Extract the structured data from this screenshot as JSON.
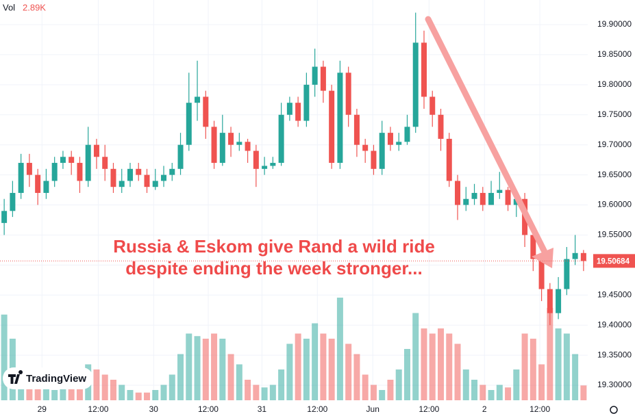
{
  "chart_data": {
    "type": "candlestick",
    "annotation": [
      "Russia & Eskom give Rand a wild ride",
      "despite ending the week stronger..."
    ],
    "volume_label": "Vol",
    "last_volume_label": "2.89K",
    "logo_text": "TradingView",
    "up_color": "#26a69a",
    "down_color": "#ef5350",
    "grid": true,
    "xlim": [
      0,
      70
    ],
    "xticks": [
      {
        "value": 5,
        "label": "29"
      },
      {
        "value": 11.7,
        "label": "12:00"
      },
      {
        "value": 18.3,
        "label": "30"
      },
      {
        "value": 24.8,
        "label": "12:00"
      },
      {
        "value": 31.2,
        "label": "31"
      },
      {
        "value": 37.8,
        "label": "12:00"
      },
      {
        "value": 44.4,
        "label": "Jun"
      },
      {
        "value": 51.1,
        "label": "12:00"
      },
      {
        "value": 57.7,
        "label": "2"
      },
      {
        "value": 64.3,
        "label": "12:00"
      }
    ],
    "ylim": [
      19.275,
      19.941
    ],
    "yticks": [
      {
        "value": 19.3,
        "label": "19.30000"
      },
      {
        "value": 19.35,
        "label": "19.35000"
      },
      {
        "value": 19.4,
        "label": "19.40000"
      },
      {
        "value": 19.45,
        "label": "19.45000"
      },
      {
        "value": 19.5,
        "label": "19.50000"
      },
      {
        "value": 19.55,
        "label": "19.55000"
      },
      {
        "value": 19.6,
        "label": "19.60000"
      },
      {
        "value": 19.65,
        "label": "19.65000"
      },
      {
        "value": 19.7,
        "label": "19.70000"
      },
      {
        "value": 19.75,
        "label": "19.75000"
      },
      {
        "value": 19.8,
        "label": "19.80000"
      },
      {
        "value": 19.85,
        "label": "19.85000"
      },
      {
        "value": 19.9,
        "label": "19.90000"
      }
    ],
    "volume_ylim": [
      0,
      24
    ],
    "open": [
      19.57,
      19.59,
      19.62,
      19.67,
      19.65,
      19.62,
      19.64,
      19.67,
      19.68,
      19.67,
      19.64,
      19.7,
      19.68,
      19.66,
      19.63,
      19.64,
      19.66,
      19.65,
      19.63,
      19.64,
      19.65,
      19.66,
      19.7,
      19.77,
      19.78,
      19.73,
      19.67,
      19.72,
      19.7,
      19.705,
      19.69,
      19.66,
      19.665,
      19.67,
      19.75,
      19.77,
      19.74,
      19.8,
      19.83,
      19.79,
      19.67,
      19.82,
      19.75,
      19.7,
      19.69,
      19.66,
      19.72,
      19.7,
      19.705,
      19.73,
      19.87,
      19.78,
      19.75,
      19.71,
      19.64,
      19.6,
      19.61,
      19.62,
      19.6,
      19.62,
      19.625,
      19.6,
      19.61,
      19.55,
      19.51,
      19.46,
      19.42,
      19.46,
      19.51,
      19.52
    ],
    "high": [
      19.61,
      19.64,
      19.685,
      19.685,
      19.66,
      19.66,
      19.68,
      19.69,
      19.69,
      19.68,
      19.73,
      19.71,
      19.7,
      19.67,
      19.66,
      19.67,
      19.67,
      19.66,
      19.66,
      19.665,
      19.67,
      19.72,
      19.82,
      19.84,
      19.79,
      19.74,
      19.75,
      19.73,
      19.72,
      19.71,
      19.7,
      19.68,
      19.68,
      19.77,
      19.78,
      19.78,
      19.82,
      19.86,
      19.84,
      19.8,
      19.84,
      19.83,
      19.76,
      19.71,
      19.7,
      19.74,
      19.73,
      19.72,
      19.75,
      19.92,
      19.89,
      19.79,
      19.76,
      19.72,
      19.65,
      19.63,
      19.635,
      19.63,
      19.64,
      19.655,
      19.63,
      19.62,
      19.62,
      19.56,
      19.52,
      19.47,
      19.48,
      19.53,
      19.55,
      19.525
    ],
    "low": [
      19.55,
      19.58,
      19.61,
      19.63,
      19.6,
      19.61,
      19.63,
      19.66,
      19.65,
      19.62,
      19.63,
      19.66,
      19.64,
      19.62,
      19.62,
      19.63,
      19.64,
      19.62,
      19.625,
      19.63,
      19.64,
      19.65,
      19.69,
      19.74,
      19.71,
      19.66,
      19.665,
      19.68,
      19.69,
      19.67,
      19.63,
      19.65,
      19.66,
      19.665,
      19.74,
      19.73,
      19.73,
      19.78,
      19.77,
      19.66,
      19.66,
      19.73,
      19.68,
      19.67,
      19.65,
      19.65,
      19.69,
      19.69,
      19.7,
      19.72,
      19.76,
      19.73,
      19.69,
      19.63,
      19.575,
      19.59,
      19.6,
      19.59,
      19.6,
      19.61,
      19.59,
      19.58,
      19.53,
      19.49,
      19.44,
      19.4,
      19.41,
      19.45,
      19.5,
      19.49
    ],
    "close": [
      19.59,
      19.62,
      19.67,
      19.65,
      19.62,
      19.64,
      19.67,
      19.68,
      19.67,
      19.64,
      19.7,
      19.68,
      19.66,
      19.63,
      19.64,
      19.66,
      19.65,
      19.63,
      19.64,
      19.65,
      19.66,
      19.7,
      19.77,
      19.78,
      19.73,
      19.67,
      19.72,
      19.7,
      19.705,
      19.69,
      19.66,
      19.665,
      19.67,
      19.75,
      19.77,
      19.74,
      19.8,
      19.83,
      19.79,
      19.67,
      19.82,
      19.75,
      19.7,
      19.69,
      19.66,
      19.72,
      19.7,
      19.705,
      19.73,
      19.87,
      19.78,
      19.75,
      19.71,
      19.64,
      19.6,
      19.61,
      19.62,
      19.6,
      19.62,
      19.625,
      19.6,
      19.61,
      19.55,
      19.51,
      19.46,
      19.42,
      19.46,
      19.51,
      19.52,
      19.50684
    ],
    "volume": [
      16.7,
      12,
      6,
      4,
      3,
      2.5,
      2,
      3,
      2.5,
      3.5,
      7,
      6,
      5,
      4,
      3,
      2,
      1.5,
      1.5,
      2,
      3,
      5,
      9,
      13,
      12.5,
      12,
      13,
      12,
      9,
      7,
      4,
      3,
      2.5,
      3,
      6,
      11,
      13,
      12,
      15,
      13,
      12,
      20,
      11,
      9,
      5,
      3,
      2,
      4,
      6,
      10,
      17,
      14,
      13,
      14,
      13,
      11,
      6,
      4,
      3,
      2,
      3,
      2.5,
      6,
      13,
      12,
      7,
      18,
      14,
      13,
      9,
      2.89
    ]
  }
}
